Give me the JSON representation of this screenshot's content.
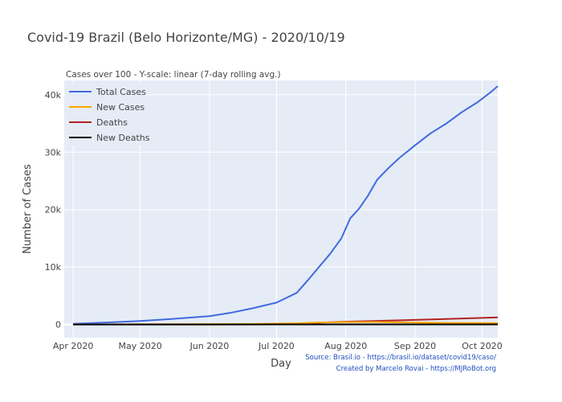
{
  "chart_data": {
    "type": "line",
    "title": "Covid-19 Brazil (Belo Horizonte/MG) - 2020/10/19",
    "subtitle": "Cases over 100 - Y-scale: linear (7-day rolling avg.)",
    "xlabel": "Day",
    "ylabel": "Number of Cases",
    "xlim": [
      "2020-03-28",
      "2020-10-08"
    ],
    "ylim": [
      -2300,
      42500
    ],
    "x_ticks": [
      {
        "date": "2020-04-01",
        "label": "Apr 2020"
      },
      {
        "date": "2020-05-01",
        "label": "May 2020"
      },
      {
        "date": "2020-06-01",
        "label": "Jun 2020"
      },
      {
        "date": "2020-07-01",
        "label": "Jul 2020"
      },
      {
        "date": "2020-08-01",
        "label": "Aug 2020"
      },
      {
        "date": "2020-09-01",
        "label": "Sep 2020"
      },
      {
        "date": "2020-10-01",
        "label": "Oct 2020"
      }
    ],
    "y_ticks": [
      {
        "value": 0,
        "label": "0"
      },
      {
        "value": 10000,
        "label": "10k"
      },
      {
        "value": 20000,
        "label": "20k"
      },
      {
        "value": 30000,
        "label": "30k"
      },
      {
        "value": 40000,
        "label": "40k"
      }
    ],
    "grid": true,
    "legend_position": "top-left",
    "series": [
      {
        "name": "Total Cases",
        "color": "#4169e1",
        "points": [
          [
            "2020-04-01",
            120
          ],
          [
            "2020-04-15",
            330
          ],
          [
            "2020-05-01",
            600
          ],
          [
            "2020-05-15",
            950
          ],
          [
            "2020-06-01",
            1450
          ],
          [
            "2020-06-10",
            2000
          ],
          [
            "2020-06-20",
            2800
          ],
          [
            "2020-07-01",
            3800
          ],
          [
            "2020-07-10",
            5500
          ],
          [
            "2020-07-15",
            7700
          ],
          [
            "2020-07-20",
            10000
          ],
          [
            "2020-07-25",
            12300
          ],
          [
            "2020-07-30",
            15000
          ],
          [
            "2020-08-03",
            18500
          ],
          [
            "2020-08-07",
            20200
          ],
          [
            "2020-08-11",
            22500
          ],
          [
            "2020-08-15",
            25200
          ],
          [
            "2020-08-20",
            27200
          ],
          [
            "2020-08-25",
            29000
          ],
          [
            "2020-09-01",
            31200
          ],
          [
            "2020-09-08",
            33300
          ],
          [
            "2020-09-15",
            35000
          ],
          [
            "2020-09-22",
            37000
          ],
          [
            "2020-09-29",
            38700
          ],
          [
            "2020-10-05",
            40500
          ],
          [
            "2020-10-08",
            41500
          ]
        ]
      },
      {
        "name": "New Cases",
        "color": "#ffa500",
        "points": [
          [
            "2020-04-01",
            5
          ],
          [
            "2020-05-01",
            20
          ],
          [
            "2020-06-01",
            40
          ],
          [
            "2020-06-20",
            80
          ],
          [
            "2020-07-01",
            150
          ],
          [
            "2020-07-10",
            200
          ],
          [
            "2020-07-20",
            350
          ],
          [
            "2020-08-01",
            420
          ],
          [
            "2020-08-15",
            430
          ],
          [
            "2020-09-01",
            330
          ],
          [
            "2020-09-15",
            280
          ],
          [
            "2020-10-01",
            250
          ],
          [
            "2020-10-08",
            240
          ]
        ]
      },
      {
        "name": "Deaths",
        "color": "#b22222",
        "points": [
          [
            "2020-04-01",
            5
          ],
          [
            "2020-05-01",
            20
          ],
          [
            "2020-06-01",
            40
          ],
          [
            "2020-07-01",
            100
          ],
          [
            "2020-07-10",
            150
          ],
          [
            "2020-07-20",
            300
          ],
          [
            "2020-08-01",
            480
          ],
          [
            "2020-08-15",
            620
          ],
          [
            "2020-09-01",
            800
          ],
          [
            "2020-09-15",
            950
          ],
          [
            "2020-10-01",
            1150
          ],
          [
            "2020-10-08",
            1230
          ]
        ]
      },
      {
        "name": "New Deaths",
        "color": "#000000",
        "points": [
          [
            "2020-04-01",
            0
          ],
          [
            "2020-06-01",
            2
          ],
          [
            "2020-07-01",
            5
          ],
          [
            "2020-08-01",
            12
          ],
          [
            "2020-09-01",
            10
          ],
          [
            "2020-10-08",
            7
          ]
        ]
      }
    ],
    "annotations": [
      "Source: Brasil.io - https://brasil.io/dataset/covid19/caso/",
      "Created by Marcelo Rovai - https://MJRoBot.org"
    ]
  }
}
